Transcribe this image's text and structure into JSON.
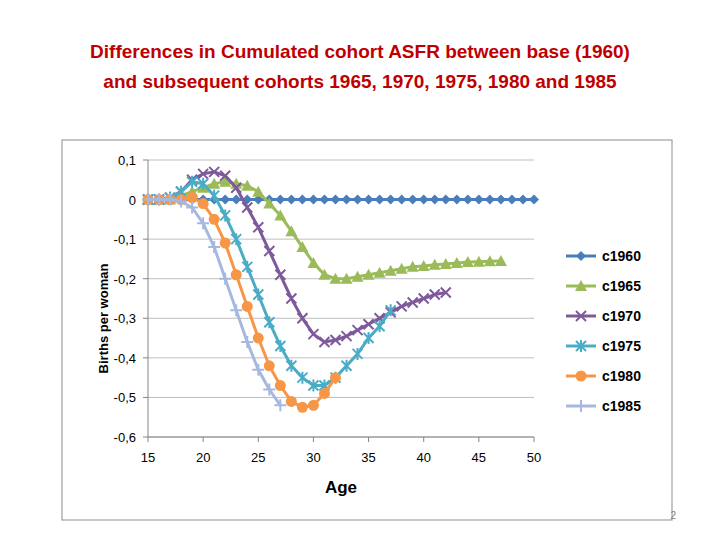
{
  "chart_data": {
    "type": "line",
    "title": "Differences in Cumulated cohort ASFR between base (1960) and subsequent cohorts 1965, 1970, 1975, 1980 and 1985",
    "x_label": "Age",
    "y_label": "Births per woman",
    "annotations": [
      "2"
    ],
    "x": [
      15,
      16,
      17,
      18,
      19,
      20,
      21,
      22,
      23,
      24,
      25,
      26,
      27,
      28,
      29,
      30,
      31,
      32,
      33,
      34,
      35,
      36,
      37,
      38,
      39,
      40,
      41,
      42,
      43,
      44,
      45,
      46,
      47,
      48,
      49,
      50
    ],
    "series": [
      {
        "name": "c1960",
        "color": "#4a7ebb",
        "marker": "diamond",
        "values": [
          0,
          0,
          0,
          0,
          0,
          0,
          0,
          0,
          0,
          0,
          0,
          0,
          0,
          0,
          0,
          0,
          0,
          0,
          0,
          0,
          0,
          0,
          0,
          0,
          0,
          0,
          0,
          0,
          0,
          0,
          0,
          0,
          0,
          0,
          0,
          0
        ]
      },
      {
        "name": "c1965",
        "color": "#9bbb59",
        "marker": "triangle",
        "values": [
          0,
          0,
          0,
          0.01,
          0.02,
          0.03,
          0.04,
          0.045,
          0.04,
          0.035,
          0.02,
          -0.01,
          -0.04,
          -0.08,
          -0.12,
          -0.16,
          -0.19,
          -0.2,
          -0.2,
          -0.195,
          -0.19,
          -0.185,
          -0.18,
          -0.175,
          -0.17,
          -0.168,
          -0.165,
          -0.163,
          -0.16,
          -0.158,
          -0.157,
          -0.156,
          -0.155,
          null,
          null,
          null
        ]
      },
      {
        "name": "c1970",
        "color": "#7e5a9b",
        "marker": "x",
        "values": [
          0,
          0,
          0.005,
          0.02,
          0.05,
          0.065,
          0.07,
          0.06,
          0.03,
          -0.02,
          -0.07,
          -0.13,
          -0.19,
          -0.25,
          -0.3,
          -0.34,
          -0.36,
          -0.355,
          -0.345,
          -0.33,
          -0.315,
          -0.3,
          -0.285,
          -0.27,
          -0.26,
          -0.25,
          -0.24,
          -0.235,
          null,
          null,
          null,
          null,
          null,
          null,
          null,
          null
        ]
      },
      {
        "name": "c1975",
        "color": "#4bacc6",
        "marker": "star",
        "values": [
          0,
          0,
          0.005,
          0.02,
          0.045,
          0.04,
          0.01,
          -0.04,
          -0.1,
          -0.17,
          -0.24,
          -0.31,
          -0.37,
          -0.42,
          -0.45,
          -0.47,
          -0.47,
          -0.45,
          -0.42,
          -0.39,
          -0.35,
          -0.32,
          -0.28,
          null,
          null,
          null,
          null,
          null,
          null,
          null,
          null,
          null,
          null,
          null,
          null,
          null
        ]
      },
      {
        "name": "c1980",
        "color": "#f79646",
        "marker": "circle",
        "values": [
          0,
          0,
          0,
          0,
          0.005,
          -0.01,
          -0.05,
          -0.11,
          -0.19,
          -0.27,
          -0.35,
          -0.42,
          -0.47,
          -0.51,
          -0.525,
          -0.52,
          -0.49,
          -0.45,
          null,
          null,
          null,
          null,
          null,
          null,
          null,
          null,
          null,
          null,
          null,
          null,
          null,
          null,
          null,
          null,
          null,
          null
        ]
      },
      {
        "name": "c1985",
        "color": "#a6b8e0",
        "marker": "plus",
        "values": [
          0,
          0,
          0,
          -0.005,
          -0.02,
          -0.06,
          -0.12,
          -0.2,
          -0.28,
          -0.36,
          -0.43,
          -0.48,
          -0.52,
          null,
          null,
          null,
          null,
          null,
          null,
          null,
          null,
          null,
          null,
          null,
          null,
          null,
          null,
          null,
          null,
          null,
          null,
          null,
          null,
          null,
          null,
          null
        ]
      }
    ],
    "xlim": [
      15,
      50
    ],
    "xticks": [
      15,
      20,
      25,
      30,
      35,
      40,
      45,
      50
    ],
    "ylim": [
      -0.6,
      0.1
    ],
    "yticks": [
      {
        "value": 0.1,
        "label": "0,1"
      },
      0,
      {
        "value": -0.1,
        "label": "-0,1"
      },
      {
        "value": -0.2,
        "label": "-0,2"
      },
      {
        "value": -0.3,
        "label": "-0,3"
      },
      {
        "value": -0.4,
        "label": "-0,4"
      },
      {
        "value": -0.5,
        "label": "-0,5"
      },
      {
        "value": -0.6,
        "label": "-0,6"
      }
    ],
    "grid": true,
    "legend": "right"
  }
}
